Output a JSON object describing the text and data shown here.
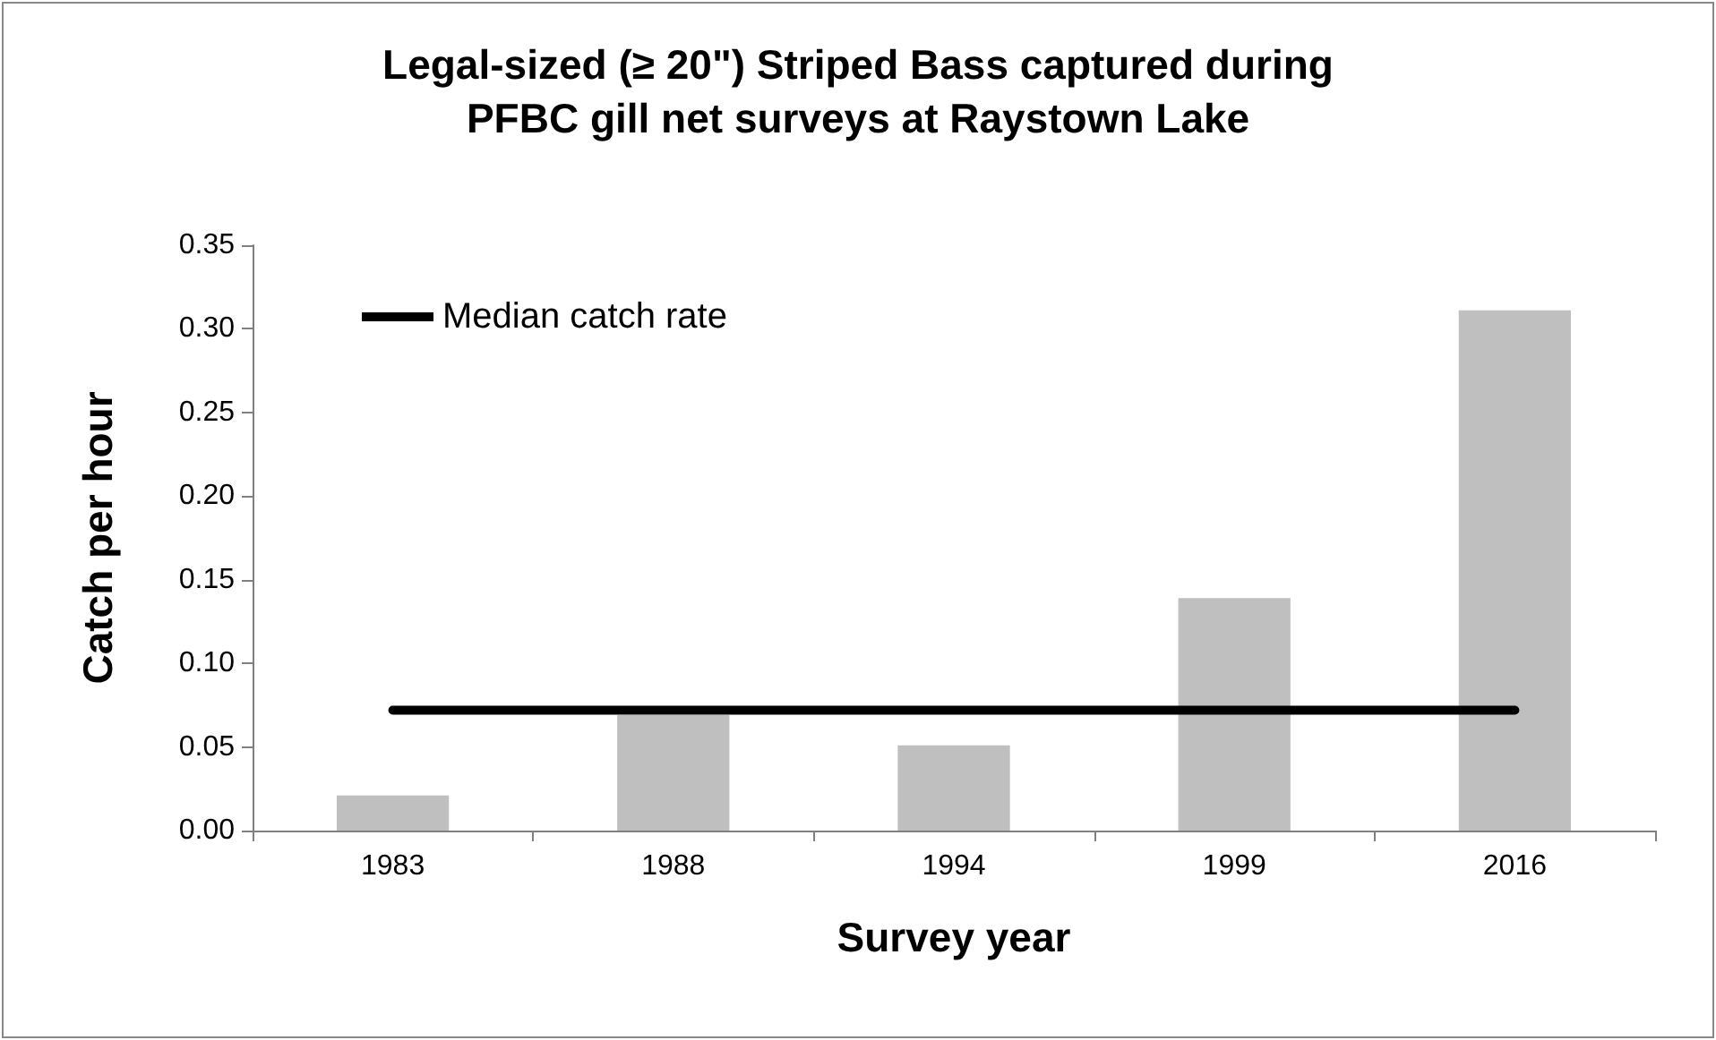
{
  "chart_data": {
    "type": "bar",
    "title": "Legal-sized (≥ 20\") Striped Bass captured during\nPFBC gill net surveys at Raystown Lake",
    "xlabel": "Survey year",
    "ylabel": "Catch per hour",
    "categories": [
      "1983",
      "1988",
      "1994",
      "1999",
      "2016"
    ],
    "series": [
      {
        "color": "#bfbfbf",
        "values": [
          0.021,
          0.069,
          0.051,
          0.139,
          0.311
        ]
      },
      {
        "type": "line",
        "name": "Median catch rate",
        "color": "#000000",
        "values": [
          0.072,
          0.072,
          0.072,
          0.072,
          0.072
        ]
      }
    ],
    "ylim": [
      0,
      0.35
    ],
    "yticks": [
      {
        "value": 0,
        "label": "0.00"
      },
      {
        "value": 0.05,
        "label": "0.05"
      },
      {
        "value": 0.1,
        "label": "0.10"
      },
      {
        "value": 0.15,
        "label": "0.15"
      },
      {
        "value": 0.2,
        "label": "0.20"
      },
      {
        "value": 0.25,
        "label": "0.25"
      },
      {
        "value": 0.3,
        "label": "0.30"
      },
      {
        "value": 0.35,
        "label": "0.35"
      }
    ],
    "grid": false,
    "legend": "top left",
    "marker": "none",
    "line_style": "solid"
  }
}
